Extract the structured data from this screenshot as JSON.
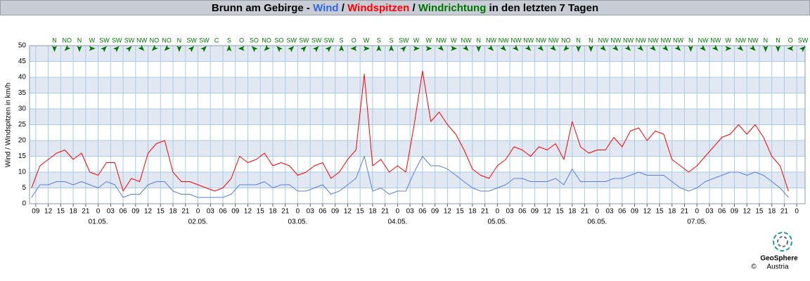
{
  "chart_data": {
    "type": "line",
    "title_parts": [
      {
        "text": "Brunn am Gebirge - ",
        "color": "#000000"
      },
      {
        "text": "Wind",
        "color": "#3366dd"
      },
      {
        "text": " / ",
        "color": "#000000"
      },
      {
        "text": "Windspitzen",
        "color": "#ff0000"
      },
      {
        "text": " / ",
        "color": "#000000"
      },
      {
        "text": "Windrichtung",
        "color": "#007700"
      },
      {
        "text": " in den letzten 7 Tagen",
        "color": "#000000"
      }
    ],
    "y_label": "Wind / Windspitzen in km/h",
    "x": [
      8,
      10,
      12,
      14,
      16,
      18,
      20,
      22,
      24,
      26,
      28,
      30,
      32,
      34,
      36,
      38,
      40,
      42,
      44,
      46,
      48,
      50,
      52,
      54,
      56,
      58,
      60,
      62,
      64,
      66,
      68,
      70,
      72,
      74,
      76,
      78,
      80,
      82,
      84,
      86,
      88,
      90,
      92,
      94,
      96,
      98,
      100,
      102,
      104,
      106,
      108,
      110,
      112,
      114,
      116,
      118,
      120,
      122,
      124,
      126,
      128,
      130,
      132,
      134,
      136,
      138,
      140,
      142,
      144,
      146,
      148,
      150,
      152,
      154,
      156,
      158,
      160,
      162,
      164,
      166,
      168,
      170,
      172,
      174,
      176,
      178,
      180,
      182,
      184,
      186,
      188,
      190
    ],
    "series": [
      {
        "color": "#5a7fe0",
        "values": [
          2,
          6,
          6,
          7,
          7,
          6,
          7,
          6,
          5,
          7,
          6,
          2,
          3,
          3,
          6,
          7,
          7,
          4,
          3,
          3,
          2,
          2,
          2,
          2,
          3,
          6,
          6,
          6,
          7,
          5,
          6,
          6,
          4,
          4,
          5,
          6,
          3,
          4,
          6,
          8,
          15,
          4,
          5,
          3,
          4,
          4,
          10,
          15,
          12,
          12,
          11,
          9,
          7,
          5,
          4,
          4,
          5,
          6,
          8,
          8,
          7,
          7,
          7,
          8,
          6,
          11,
          7,
          7,
          7,
          7,
          8,
          8,
          9,
          10,
          9,
          9,
          9,
          7,
          5,
          4,
          5,
          7,
          8,
          9,
          10,
          10,
          9,
          10,
          9,
          7,
          5,
          2
        ]
      },
      {
        "color": "#ff0000",
        "values": [
          5,
          12,
          14,
          16,
          17,
          14,
          16,
          10,
          9,
          13,
          13,
          4,
          8,
          7,
          16,
          19,
          20,
          10,
          7,
          7,
          6,
          5,
          4,
          5,
          8,
          15,
          13,
          14,
          16,
          12,
          13,
          12,
          9,
          10,
          12,
          13,
          8,
          10,
          14,
          17,
          41,
          12,
          14,
          10,
          12,
          10,
          25,
          42,
          26,
          29,
          25,
          22,
          17,
          11,
          9,
          8,
          12,
          14,
          18,
          17,
          15,
          18,
          17,
          19,
          14,
          26,
          18,
          16,
          17,
          17,
          21,
          18,
          23,
          24,
          20,
          23,
          22,
          14,
          12,
          10,
          12,
          15,
          18,
          21,
          22,
          25,
          22,
          25,
          21,
          15,
          12,
          4
        ]
      }
    ],
    "xlim": [
      7.5,
      194
    ],
    "ylim": [
      0,
      50
    ],
    "yticks": [
      0,
      5,
      10,
      15,
      20,
      25,
      30,
      35,
      40,
      45,
      50
    ],
    "xticks": [
      {
        "value": 9,
        "label": "09"
      },
      {
        "value": 12,
        "label": "12"
      },
      {
        "value": 15,
        "label": "15"
      },
      {
        "value": 18,
        "label": "18"
      },
      {
        "value": 21,
        "label": "21"
      },
      {
        "value": 24,
        "label": "0"
      },
      {
        "value": 27,
        "label": "03"
      },
      {
        "value": 30,
        "label": "06"
      },
      {
        "value": 33,
        "label": "09"
      },
      {
        "value": 36,
        "label": "12"
      },
      {
        "value": 39,
        "label": "15"
      },
      {
        "value": 42,
        "label": "18"
      },
      {
        "value": 45,
        "label": "21"
      },
      {
        "value": 48,
        "label": "0"
      },
      {
        "value": 51,
        "label": "03"
      },
      {
        "value": 54,
        "label": "06"
      },
      {
        "value": 57,
        "label": "09"
      },
      {
        "value": 60,
        "label": "12"
      },
      {
        "value": 63,
        "label": "15"
      },
      {
        "value": 66,
        "label": "18"
      },
      {
        "value": 69,
        "label": "21"
      },
      {
        "value": 72,
        "label": "0"
      },
      {
        "value": 75,
        "label": "03"
      },
      {
        "value": 78,
        "label": "06"
      },
      {
        "value": 81,
        "label": "09"
      },
      {
        "value": 84,
        "label": "12"
      },
      {
        "value": 87,
        "label": "15"
      },
      {
        "value": 90,
        "label": "18"
      },
      {
        "value": 93,
        "label": "21"
      },
      {
        "value": 96,
        "label": "0"
      },
      {
        "value": 99,
        "label": "03"
      },
      {
        "value": 102,
        "label": "06"
      },
      {
        "value": 105,
        "label": "09"
      },
      {
        "value": 108,
        "label": "12"
      },
      {
        "value": 111,
        "label": "15"
      },
      {
        "value": 114,
        "label": "18"
      },
      {
        "value": 117,
        "label": "21"
      },
      {
        "value": 120,
        "label": "0"
      },
      {
        "value": 123,
        "label": "03"
      },
      {
        "value": 126,
        "label": "06"
      },
      {
        "value": 129,
        "label": "09"
      },
      {
        "value": 132,
        "label": "12"
      },
      {
        "value": 135,
        "label": "15"
      },
      {
        "value": 138,
        "label": "18"
      },
      {
        "value": 141,
        "label": "21"
      },
      {
        "value": 144,
        "label": "0"
      },
      {
        "value": 147,
        "label": "03"
      },
      {
        "value": 150,
        "label": "06"
      },
      {
        "value": 153,
        "label": "09"
      },
      {
        "value": 156,
        "label": "12"
      },
      {
        "value": 159,
        "label": "15"
      },
      {
        "value": 162,
        "label": "18"
      },
      {
        "value": 165,
        "label": "21"
      },
      {
        "value": 168,
        "label": "0"
      },
      {
        "value": 171,
        "label": "03"
      },
      {
        "value": 174,
        "label": "06"
      },
      {
        "value": 177,
        "label": "09"
      },
      {
        "value": 180,
        "label": "12"
      },
      {
        "value": 183,
        "label": "15"
      },
      {
        "value": 186,
        "label": "18"
      },
      {
        "value": 189,
        "label": "21"
      },
      {
        "value": 192,
        "label": "0"
      }
    ],
    "date_labels": [
      {
        "value": 24,
        "label": "01.05."
      },
      {
        "value": 48,
        "label": "02.05."
      },
      {
        "value": 72,
        "label": "03.05."
      },
      {
        "value": 96,
        "label": "04.05."
      },
      {
        "value": 120,
        "label": "05.05."
      },
      {
        "value": 144,
        "label": "06.05."
      },
      {
        "value": 168,
        "label": "07.05."
      }
    ],
    "wind_direction": {
      "color": "#007700",
      "x": [
        13.5,
        16.5,
        19.5,
        22.5,
        25.5,
        28.5,
        31.5,
        34.5,
        37.5,
        40.5,
        43.5,
        46.5,
        49.5,
        52.5,
        55.5,
        58.5,
        61.5,
        64.5,
        67.5,
        70.5,
        73.5,
        76.5,
        79.5,
        82.5,
        85.5,
        88.5,
        91.5,
        94.5,
        97.5,
        100.5,
        103.5,
        106.5,
        109.5,
        112.5,
        115.5,
        118.5,
        121.5,
        124.5,
        127.5,
        130.5,
        133.5,
        136.5,
        139.5,
        142.5,
        145.5,
        148.5,
        151.5,
        154.5,
        157.5,
        160.5,
        163.5,
        166.5,
        169.5,
        172.5,
        175.5,
        178.5,
        181.5,
        184.5,
        187.5,
        190.5,
        193.5
      ],
      "labels": [
        "N",
        "NO",
        "N",
        "W",
        "SW",
        "SW",
        "SW",
        "NW",
        "NO",
        "NO",
        "N",
        "SW",
        "SW",
        "C",
        "S",
        "O",
        "SO",
        "NO",
        "SO",
        "SW",
        "SW",
        "SW",
        "SW",
        "S",
        "O",
        "W",
        "S",
        "S",
        "SW",
        "W",
        "W",
        "NW",
        "W",
        "NW",
        "N",
        "NW",
        "NW",
        "NW",
        "NW",
        "NW",
        "NW",
        "NO",
        "N",
        "N",
        "NW",
        "NW",
        "NW",
        "NW",
        "NW",
        "NW",
        "NW",
        "N",
        "NW",
        "NW",
        "W",
        "NW",
        "NW",
        "N",
        "N",
        "O",
        "SW"
      ]
    },
    "grid": true,
    "bands": true,
    "band_color": "#e1e8f1",
    "grid_color": "#a9cbe6",
    "logo": {
      "name": "GeoSphere",
      "copyright": "©",
      "country": "Austria"
    }
  }
}
